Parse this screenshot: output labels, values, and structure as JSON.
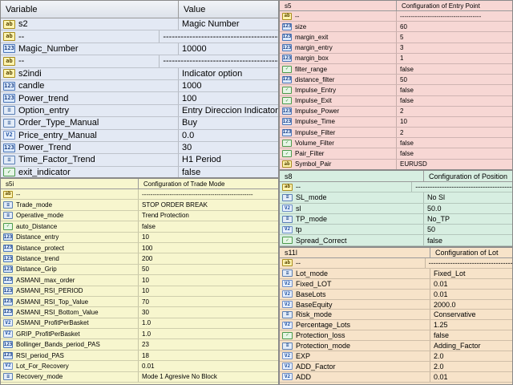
{
  "main_panel": {
    "columns": [
      "Variable",
      "Value"
    ],
    "rows": [
      {
        "icon": "ab",
        "name": "s2",
        "value": "Magic Number"
      },
      {
        "icon": "ab",
        "name": "--",
        "value": "--------------------------------------------"
      },
      {
        "icon": "123",
        "name": "Magic_Number",
        "value": "10000"
      },
      {
        "icon": "ab",
        "name": "--",
        "value": "--------------------------------------------"
      },
      {
        "icon": "ab",
        "name": "s2indi",
        "value": "Indicator option"
      },
      {
        "icon": "123",
        "name": "candle",
        "value": "1000"
      },
      {
        "icon": "123",
        "name": "Power_trend",
        "value": "100"
      },
      {
        "icon": "enum",
        "name": "Option_entry",
        "value": "Entry Direccion Indicator"
      },
      {
        "icon": "enum",
        "name": "Order_Type_Manual",
        "value": "Buy"
      },
      {
        "icon": "v2",
        "name": "Price_entry_Manual",
        "value": "0.0"
      },
      {
        "icon": "123",
        "name": "Power_Trend",
        "value": "30"
      },
      {
        "icon": "enum",
        "name": "Time_Factor_Trend",
        "value": "H1 Period"
      },
      {
        "icon": "bool",
        "name": "exit_indicator",
        "value": "false"
      }
    ]
  },
  "entry_panel": {
    "columns": [
      "s5",
      "Configuration of Entry Point"
    ],
    "rows": [
      {
        "icon": "ab",
        "name": "--",
        "value": "--------------------------------------"
      },
      {
        "icon": "123",
        "name": "size",
        "value": "60"
      },
      {
        "icon": "123",
        "name": "margin_exit",
        "value": "5"
      },
      {
        "icon": "123",
        "name": "margin_entry",
        "value": "3"
      },
      {
        "icon": "123",
        "name": "margin_box",
        "value": "1"
      },
      {
        "icon": "bool",
        "name": "filter_range",
        "value": "false"
      },
      {
        "icon": "123",
        "name": "distance_filter",
        "value": "50"
      },
      {
        "icon": "bool",
        "name": "Impulse_Entry",
        "value": "false"
      },
      {
        "icon": "bool",
        "name": "Impulse_Exit",
        "value": "false"
      },
      {
        "icon": "123",
        "name": "Impulse_Power",
        "value": "2"
      },
      {
        "icon": "123",
        "name": "Impulse_Time",
        "value": "10"
      },
      {
        "icon": "123",
        "name": "Impulse_Filter",
        "value": "2"
      },
      {
        "icon": "bool",
        "name": "Volume_Filter",
        "value": "false"
      },
      {
        "icon": "bool",
        "name": "Pair_Filter",
        "value": "false"
      },
      {
        "icon": "ab",
        "name": "Symbol_Pair",
        "value": "EURUSD"
      }
    ]
  },
  "trade_panel": {
    "columns": [
      "s5i",
      "Configuration of Trade Mode"
    ],
    "rows": [
      {
        "icon": "ab",
        "name": "--",
        "value": "----------------------------------------------------"
      },
      {
        "icon": "enum",
        "name": "Trade_mode",
        "value": "STOP ORDER BREAK"
      },
      {
        "icon": "enum",
        "name": "Operative_mode",
        "value": "Trend Protection"
      },
      {
        "icon": "bool",
        "name": "auto_Distance",
        "value": "false"
      },
      {
        "icon": "123",
        "name": "Distance_entry",
        "value": "10"
      },
      {
        "icon": "123",
        "name": "Distance_protect",
        "value": "100"
      },
      {
        "icon": "123",
        "name": "Distance_trend",
        "value": "200"
      },
      {
        "icon": "123",
        "name": "Distance_Grip",
        "value": "50"
      },
      {
        "icon": "123",
        "name": "ASMANI_max_order",
        "value": "10"
      },
      {
        "icon": "123",
        "name": "ASMANI_RSI_PERIOD",
        "value": "10"
      },
      {
        "icon": "123",
        "name": "ASMANI_RSI_Top_Value",
        "value": "70"
      },
      {
        "icon": "123",
        "name": "ASMANI_RSI_Bottom_Value",
        "value": "30"
      },
      {
        "icon": "v2",
        "name": "ASMANI_ProfitPerBasket",
        "value": "1.0"
      },
      {
        "icon": "v2",
        "name": "GRIP_ProfitPerBasket",
        "value": "1.0"
      },
      {
        "icon": "123",
        "name": "Bollinger_Bands_period_PAS",
        "value": "23"
      },
      {
        "icon": "123",
        "name": "RSI_period_PAS",
        "value": "18"
      },
      {
        "icon": "v2",
        "name": "Lot_For_Recovery",
        "value": "0.01"
      },
      {
        "icon": "enum",
        "name": "Recovery_mode",
        "value": "Mode 1 Agresive No Block"
      }
    ]
  },
  "position_panel": {
    "columns": [
      "s8",
      "Configuration of Position"
    ],
    "rows": [
      {
        "icon": "ab",
        "name": "--",
        "value": "--------------------------------------------"
      },
      {
        "icon": "enum",
        "name": "SL_mode",
        "value": "No Sl"
      },
      {
        "icon": "v2",
        "name": "sl",
        "value": "50.0"
      },
      {
        "icon": "enum",
        "name": "TP_mode",
        "value": "No_TP"
      },
      {
        "icon": "v2",
        "name": "tp",
        "value": "50"
      },
      {
        "icon": "bool",
        "name": "Spread_Correct",
        "value": "false"
      }
    ]
  },
  "lot_panel": {
    "columns": [
      "s11l",
      "Configuration of Lot"
    ],
    "rows": [
      {
        "icon": "ab",
        "name": "--",
        "value": "------------------------------------"
      },
      {
        "icon": "enum",
        "name": "Lot_mode",
        "value": "Fixed_Lot"
      },
      {
        "icon": "v2",
        "name": "Fixed_LOT",
        "value": "0.01"
      },
      {
        "icon": "v2",
        "name": "BaseLots",
        "value": "0.01"
      },
      {
        "icon": "v2",
        "name": "BaseEquity",
        "value": "2000.0"
      },
      {
        "icon": "enum",
        "name": "Risk_mode",
        "value": "Conservative"
      },
      {
        "icon": "v2",
        "name": "Percentage_Lots",
        "value": "1.25"
      },
      {
        "icon": "bool",
        "name": "Protection_loss",
        "value": "false"
      },
      {
        "icon": "enum",
        "name": "Protection_mode",
        "value": "Adding_Factor"
      },
      {
        "icon": "v2",
        "name": "EXP",
        "value": "2.0"
      },
      {
        "icon": "v2",
        "name": "ADD_Factor",
        "value": "2.0"
      },
      {
        "icon": "v2",
        "name": "ADD",
        "value": "0.01"
      }
    ]
  }
}
